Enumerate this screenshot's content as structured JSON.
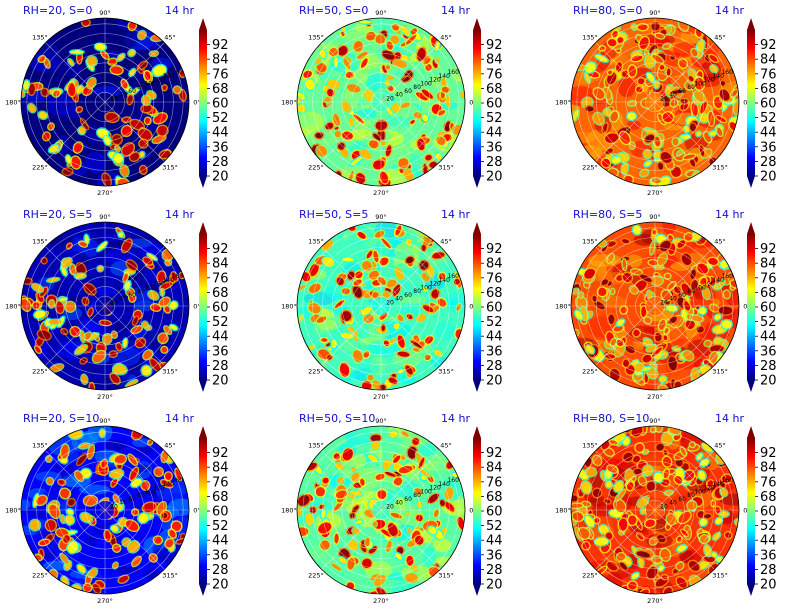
{
  "colors": {
    "title_text": "#1010cc",
    "jet": [
      "#00007f",
      "#0000ff",
      "#007fff",
      "#00ffff",
      "#7fff7f",
      "#ffff00",
      "#ff7f00",
      "#ff0000",
      "#7f0000"
    ]
  },
  "chart_data": [
    {
      "type": "heatmap",
      "title": "RH=20, S=0",
      "time_label": "14 hr",
      "projection": "polar",
      "base_level": 20,
      "hot_fraction": 0.28,
      "colorbar_ticks": [
        "92",
        "84",
        "76",
        "68",
        "60",
        "52",
        "44",
        "36",
        "28",
        "20"
      ],
      "colorbar_range": [
        20,
        100
      ],
      "theta_ticks": [
        "90°",
        "45°",
        "0°",
        "315°",
        "270°",
        "225°",
        "180°",
        "135°"
      ],
      "r_ticks": [
        "20",
        "40",
        "60",
        "80",
        "100",
        "120",
        "140",
        "160"
      ]
    },
    {
      "type": "heatmap",
      "title": "RH=50, S=0",
      "time_label": "14 hr",
      "projection": "polar",
      "base_level": 58,
      "hot_fraction": 0.55,
      "colorbar_ticks": [
        "92",
        "84",
        "76",
        "68",
        "60",
        "52",
        "44",
        "36",
        "28",
        "20"
      ],
      "colorbar_range": [
        20,
        100
      ],
      "theta_ticks": [
        "90°",
        "45°",
        "0°",
        "315°",
        "270°",
        "225°",
        "180°",
        "135°"
      ],
      "r_ticks": [
        "20",
        "40",
        "60",
        "80",
        "100",
        "120",
        "140",
        "160"
      ]
    },
    {
      "type": "heatmap",
      "title": "RH=80, S=0",
      "time_label": "14 hr",
      "projection": "polar",
      "base_level": 82,
      "hot_fraction": 0.85,
      "colorbar_ticks": [
        "92",
        "84",
        "76",
        "68",
        "60",
        "52",
        "44",
        "36",
        "28",
        "20"
      ],
      "colorbar_range": [
        20,
        100
      ],
      "theta_ticks": [
        "90°",
        "45°",
        "0°",
        "315°",
        "270°",
        "225°",
        "180°",
        "135°"
      ],
      "r_ticks": [
        "20",
        "40",
        "60",
        "80",
        "100",
        "120",
        "140",
        "160"
      ]
    },
    {
      "type": "heatmap",
      "title": "RH=20, S=5",
      "time_label": "14 hr",
      "projection": "polar",
      "base_level": 24,
      "hot_fraction": 0.32,
      "colorbar_ticks": [
        "92",
        "84",
        "76",
        "68",
        "60",
        "52",
        "44",
        "36",
        "28",
        "20"
      ],
      "colorbar_range": [
        20,
        100
      ],
      "theta_ticks": [
        "90°",
        "45°",
        "0°",
        "315°",
        "270°",
        "225°",
        "180°",
        "135°"
      ],
      "r_ticks": [
        "20",
        "40",
        "60",
        "80",
        "100",
        "120",
        "140",
        "160"
      ]
    },
    {
      "type": "heatmap",
      "title": "RH=50, S=5",
      "time_label": "14 hr",
      "projection": "polar",
      "base_level": 55,
      "hot_fraction": 0.45,
      "colorbar_ticks": [
        "92",
        "84",
        "76",
        "68",
        "60",
        "52",
        "44",
        "36",
        "28",
        "20"
      ],
      "colorbar_range": [
        20,
        100
      ],
      "theta_ticks": [
        "90°",
        "45°",
        "0°",
        "315°",
        "270°",
        "225°",
        "180°",
        "135°"
      ],
      "r_ticks": [
        "20",
        "40",
        "60",
        "80",
        "100",
        "120",
        "140",
        "160"
      ]
    },
    {
      "type": "heatmap",
      "title": "RH=80, S=5",
      "time_label": "14 hr",
      "projection": "polar",
      "base_level": 84,
      "hot_fraction": 0.88,
      "colorbar_ticks": [
        "92",
        "84",
        "76",
        "68",
        "60",
        "52",
        "44",
        "36",
        "28",
        "20"
      ],
      "colorbar_range": [
        20,
        100
      ],
      "theta_ticks": [
        "90°",
        "45°",
        "0°",
        "315°",
        "270°",
        "225°",
        "180°",
        "135°"
      ],
      "r_ticks": [
        "20",
        "40",
        "60",
        "80",
        "100",
        "120",
        "140",
        "160"
      ]
    },
    {
      "type": "heatmap",
      "title": "RH=20, S=10",
      "time_label": "14 hr",
      "projection": "polar",
      "base_level": 30,
      "hot_fraction": 0.38,
      "colorbar_ticks": [
        "92",
        "84",
        "76",
        "68",
        "60",
        "52",
        "44",
        "36",
        "28",
        "20"
      ],
      "colorbar_range": [
        20,
        100
      ],
      "theta_ticks": [
        "90°",
        "45°",
        "0°",
        "315°",
        "270°",
        "225°",
        "180°",
        "135°"
      ],
      "r_ticks": [
        "20",
        "40",
        "60",
        "80",
        "100",
        "120",
        "140",
        "160"
      ]
    },
    {
      "type": "heatmap",
      "title": "RH=50, S=10",
      "time_label": "14 hr",
      "projection": "polar",
      "base_level": 57,
      "hot_fraction": 0.5,
      "colorbar_ticks": [
        "92",
        "84",
        "76",
        "68",
        "60",
        "52",
        "44",
        "36",
        "28",
        "20"
      ],
      "colorbar_range": [
        20,
        100
      ],
      "theta_ticks": [
        "90°",
        "45°",
        "0°",
        "315°",
        "270°",
        "225°",
        "180°",
        "135°"
      ],
      "r_ticks": [
        "20",
        "40",
        "60",
        "80",
        "100",
        "120",
        "140",
        "160"
      ]
    },
    {
      "type": "heatmap",
      "title": "RH=80, S=10",
      "time_label": "14 hr",
      "projection": "polar",
      "base_level": 86,
      "hot_fraction": 0.9,
      "colorbar_ticks": [
        "92",
        "84",
        "76",
        "68",
        "60",
        "52",
        "44",
        "36",
        "28",
        "20"
      ],
      "colorbar_range": [
        20,
        100
      ],
      "theta_ticks": [
        "90°",
        "45°",
        "0°",
        "315°",
        "270°",
        "225°",
        "180°",
        "135°"
      ],
      "r_ticks": [
        "20",
        "40",
        "60",
        "80",
        "100",
        "120",
        "140",
        "160"
      ]
    }
  ]
}
